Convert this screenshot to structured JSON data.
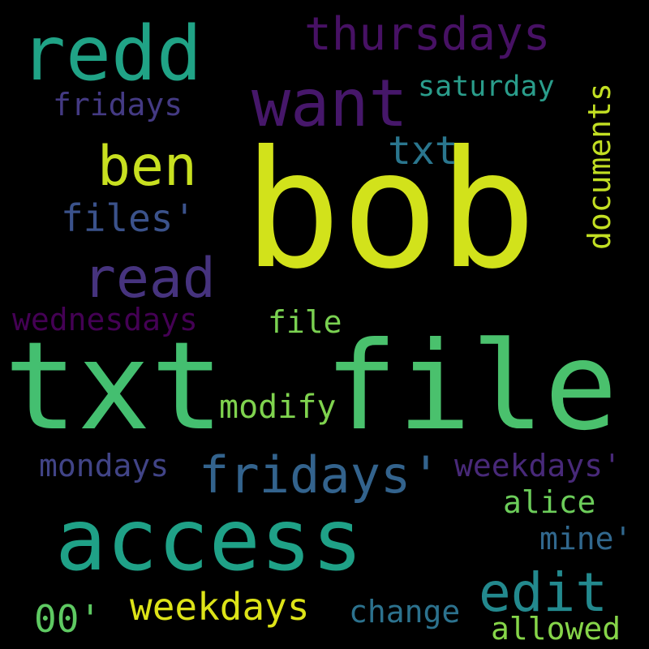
{
  "words": [
    {
      "key": "bob",
      "text": "bob",
      "color": "#d2e21b"
    },
    {
      "key": "txt",
      "text": "txt",
      "color": "#44bf70"
    },
    {
      "key": "file",
      "text": "file",
      "color": "#4ac16d"
    },
    {
      "key": "access",
      "text": "access",
      "color": "#1fa187"
    },
    {
      "key": "redd",
      "text": "redd",
      "color": "#20a386"
    },
    {
      "key": "want",
      "text": "want",
      "color": "#46176a"
    },
    {
      "key": "thursdays",
      "text": "thursdays",
      "color": "#471164"
    },
    {
      "key": "ben",
      "text": "ben",
      "color": "#c8e020"
    },
    {
      "key": "read",
      "text": "read",
      "color": "#46337e"
    },
    {
      "key": "fridays_apos",
      "text": "fridays'",
      "color": "#33638d"
    },
    {
      "key": "edit",
      "text": "edit",
      "color": "#23898e"
    },
    {
      "key": "weekdays",
      "text": "weekdays",
      "color": "#dde318"
    },
    {
      "key": "files_apos",
      "text": "files'",
      "color": "#3b528b"
    },
    {
      "key": "saturday",
      "text": "saturday",
      "color": "#2a9d8b"
    },
    {
      "key": "fridays",
      "text": "fridays",
      "color": "#443a83"
    },
    {
      "key": "txt_small",
      "text": "txt",
      "color": "#2a768e"
    },
    {
      "key": "documents",
      "text": "documents",
      "color": "#c2df23"
    },
    {
      "key": "wednesdays",
      "text": "wednesdays",
      "color": "#440154"
    },
    {
      "key": "file_small",
      "text": "file",
      "color": "#7ad151"
    },
    {
      "key": "modify",
      "text": "modify",
      "color": "#7fd34e"
    },
    {
      "key": "mondays",
      "text": "mondays",
      "color": "#414487"
    },
    {
      "key": "weekdays_apos",
      "text": "weekdays'",
      "color": "#482979"
    },
    {
      "key": "alice",
      "text": "alice",
      "color": "#6ccd5a"
    },
    {
      "key": "mine_apos",
      "text": "mine'",
      "color": "#31688e"
    },
    {
      "key": "oo_apos",
      "text": "00'",
      "color": "#5ec962"
    },
    {
      "key": "change",
      "text": "change",
      "color": "#2c728e"
    },
    {
      "key": "allowed",
      "text": "allowed",
      "color": "#86d549"
    }
  ]
}
